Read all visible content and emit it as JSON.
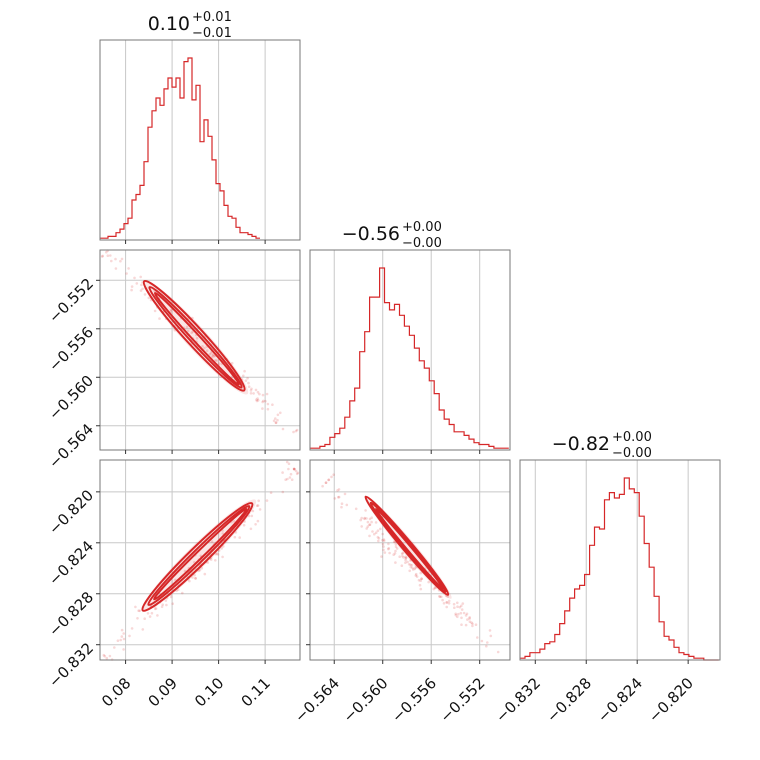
{
  "chart_data": {
    "type": "corner",
    "color": "#d62728",
    "parameters": [
      {
        "name": "p0",
        "range": [
          0.0745,
          0.1175
        ],
        "ticks": [
          0.08,
          0.09,
          0.1,
          0.11
        ],
        "tick_labels": [
          "0.08",
          "0.09",
          "0.10",
          "0.11"
        ],
        "title": {
          "value": "0.10",
          "plus": "+0.01",
          "minus": "−0.01"
        },
        "histogram": {
          "edges_start": 0.0745,
          "bin_width": 0.00086,
          "counts": [
            0.01,
            0.01,
            0.02,
            0.02,
            0.04,
            0.06,
            0.09,
            0.12,
            0.22,
            0.25,
            0.3,
            0.43,
            0.62,
            0.71,
            0.78,
            0.74,
            0.83,
            0.89,
            0.84,
            0.89,
            0.78,
            0.98,
            1.0,
            0.77,
            0.85,
            0.54,
            0.66,
            0.57,
            0.44,
            0.31,
            0.27,
            0.19,
            0.13,
            0.12,
            0.07,
            0.04,
            0.04,
            0.03,
            0.02,
            0.01
          ]
        }
      },
      {
        "name": "p1",
        "range": [
          -0.566,
          -0.5495
        ],
        "ticks": [
          -0.564,
          -0.56,
          -0.556,
          -0.552
        ],
        "tick_labels": [
          "−0.564",
          "−0.560",
          "−0.556",
          "−0.552"
        ],
        "title": {
          "value": "−0.56",
          "plus": "+0.00",
          "minus": "−0.00"
        },
        "histogram": {
          "edges_start": -0.566,
          "bin_width": 0.00041,
          "counts": [
            0.01,
            0.01,
            0.02,
            0.03,
            0.07,
            0.09,
            0.12,
            0.18,
            0.27,
            0.34,
            0.54,
            0.65,
            0.84,
            0.84,
            1.0,
            0.81,
            0.77,
            0.8,
            0.74,
            0.68,
            0.63,
            0.56,
            0.49,
            0.45,
            0.38,
            0.31,
            0.22,
            0.17,
            0.14,
            0.1,
            0.1,
            0.08,
            0.06,
            0.04,
            0.03,
            0.03,
            0.02,
            0.01,
            0.01,
            0.01
          ]
        }
      },
      {
        "name": "p2",
        "range": [
          -0.8332,
          -0.8175
        ],
        "ticks": [
          -0.832,
          -0.828,
          -0.824,
          -0.82
        ],
        "tick_labels": [
          "−0.832",
          "−0.828",
          "−0.824",
          "−0.820"
        ],
        "title": {
          "value": "−0.82",
          "plus": "+0.00",
          "minus": "−0.00"
        },
        "histogram": {
          "edges_start": -0.8332,
          "bin_width": 0.00039,
          "counts": [
            0.01,
            0.02,
            0.04,
            0.04,
            0.06,
            0.09,
            0.1,
            0.14,
            0.2,
            0.27,
            0.34,
            0.39,
            0.41,
            0.47,
            0.63,
            0.73,
            0.72,
            0.88,
            0.92,
            0.89,
            0.91,
            1.0,
            0.94,
            0.92,
            0.79,
            0.64,
            0.51,
            0.35,
            0.21,
            0.13,
            0.11,
            0.07,
            0.04,
            0.03,
            0.02,
            0.01,
            0.01,
            0.0,
            0.0,
            0.0
          ]
        }
      }
    ],
    "pairs": [
      {
        "x": 0,
        "y": 1,
        "from": [
          0.0758,
          -0.5497
        ],
        "to": [
          0.1165,
          -0.5645
        ],
        "core_from": [
          0.0843,
          -0.5522
        ],
        "core_to": [
          0.1058,
          -0.5612
        ]
      },
      {
        "x": 0,
        "y": 2,
        "from": [
          0.0758,
          -0.833
        ],
        "to": [
          0.1165,
          -0.8183
        ],
        "core_from": [
          0.084,
          -0.8292
        ],
        "core_to": [
          0.1075,
          -0.8208
        ]
      },
      {
        "x": 1,
        "y": 2,
        "from": [
          -0.5647,
          -0.8193
        ],
        "to": [
          -0.5503,
          -0.8324
        ],
        "core_from": [
          -0.5613,
          -0.8205
        ],
        "core_to": [
          -0.5545,
          -0.8282
        ]
      }
    ],
    "grid": true
  }
}
